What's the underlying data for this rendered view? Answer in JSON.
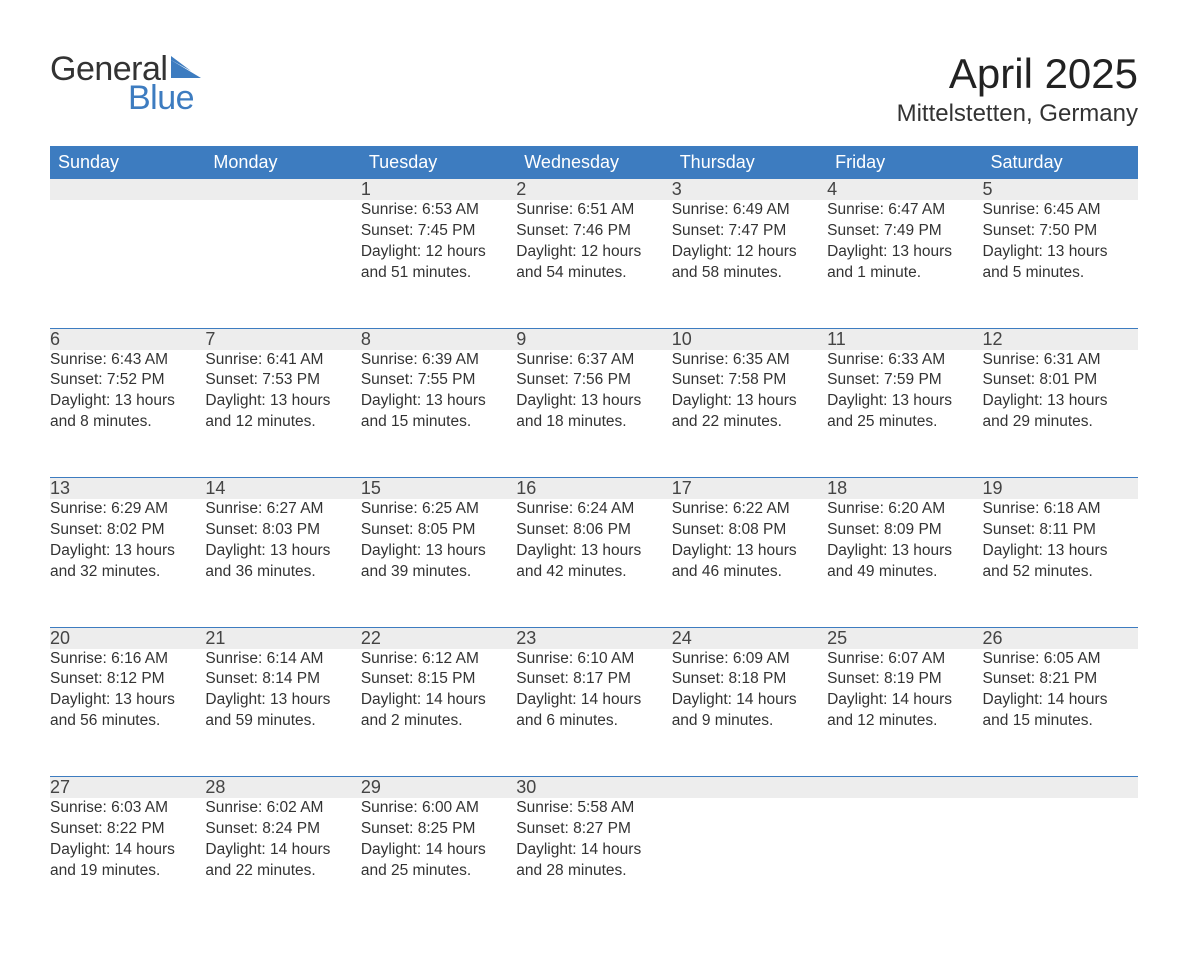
{
  "brand": {
    "word1": "General",
    "word2": "Blue",
    "text_color": "#333333",
    "accent_color": "#3d7cc0"
  },
  "title": "April 2025",
  "location": "Mittelstetten, Germany",
  "colors": {
    "header_bg": "#3d7cc0",
    "header_fg": "#ffffff",
    "daynum_bg": "#ededed",
    "row_border": "#3d7cc0",
    "body_fg": "#333333",
    "page_bg": "#ffffff"
  },
  "day_labels": [
    "Sunday",
    "Monday",
    "Tuesday",
    "Wednesday",
    "Thursday",
    "Friday",
    "Saturday"
  ],
  "weeks": [
    [
      null,
      null,
      {
        "n": "1",
        "sunrise": "Sunrise: 6:53 AM",
        "sunset": "Sunset: 7:45 PM",
        "daylight1": "Daylight: 12 hours",
        "daylight2": "and 51 minutes."
      },
      {
        "n": "2",
        "sunrise": "Sunrise: 6:51 AM",
        "sunset": "Sunset: 7:46 PM",
        "daylight1": "Daylight: 12 hours",
        "daylight2": "and 54 minutes."
      },
      {
        "n": "3",
        "sunrise": "Sunrise: 6:49 AM",
        "sunset": "Sunset: 7:47 PM",
        "daylight1": "Daylight: 12 hours",
        "daylight2": "and 58 minutes."
      },
      {
        "n": "4",
        "sunrise": "Sunrise: 6:47 AM",
        "sunset": "Sunset: 7:49 PM",
        "daylight1": "Daylight: 13 hours",
        "daylight2": "and 1 minute."
      },
      {
        "n": "5",
        "sunrise": "Sunrise: 6:45 AM",
        "sunset": "Sunset: 7:50 PM",
        "daylight1": "Daylight: 13 hours",
        "daylight2": "and 5 minutes."
      }
    ],
    [
      {
        "n": "6",
        "sunrise": "Sunrise: 6:43 AM",
        "sunset": "Sunset: 7:52 PM",
        "daylight1": "Daylight: 13 hours",
        "daylight2": "and 8 minutes."
      },
      {
        "n": "7",
        "sunrise": "Sunrise: 6:41 AM",
        "sunset": "Sunset: 7:53 PM",
        "daylight1": "Daylight: 13 hours",
        "daylight2": "and 12 minutes."
      },
      {
        "n": "8",
        "sunrise": "Sunrise: 6:39 AM",
        "sunset": "Sunset: 7:55 PM",
        "daylight1": "Daylight: 13 hours",
        "daylight2": "and 15 minutes."
      },
      {
        "n": "9",
        "sunrise": "Sunrise: 6:37 AM",
        "sunset": "Sunset: 7:56 PM",
        "daylight1": "Daylight: 13 hours",
        "daylight2": "and 18 minutes."
      },
      {
        "n": "10",
        "sunrise": "Sunrise: 6:35 AM",
        "sunset": "Sunset: 7:58 PM",
        "daylight1": "Daylight: 13 hours",
        "daylight2": "and 22 minutes."
      },
      {
        "n": "11",
        "sunrise": "Sunrise: 6:33 AM",
        "sunset": "Sunset: 7:59 PM",
        "daylight1": "Daylight: 13 hours",
        "daylight2": "and 25 minutes."
      },
      {
        "n": "12",
        "sunrise": "Sunrise: 6:31 AM",
        "sunset": "Sunset: 8:01 PM",
        "daylight1": "Daylight: 13 hours",
        "daylight2": "and 29 minutes."
      }
    ],
    [
      {
        "n": "13",
        "sunrise": "Sunrise: 6:29 AM",
        "sunset": "Sunset: 8:02 PM",
        "daylight1": "Daylight: 13 hours",
        "daylight2": "and 32 minutes."
      },
      {
        "n": "14",
        "sunrise": "Sunrise: 6:27 AM",
        "sunset": "Sunset: 8:03 PM",
        "daylight1": "Daylight: 13 hours",
        "daylight2": "and 36 minutes."
      },
      {
        "n": "15",
        "sunrise": "Sunrise: 6:25 AM",
        "sunset": "Sunset: 8:05 PM",
        "daylight1": "Daylight: 13 hours",
        "daylight2": "and 39 minutes."
      },
      {
        "n": "16",
        "sunrise": "Sunrise: 6:24 AM",
        "sunset": "Sunset: 8:06 PM",
        "daylight1": "Daylight: 13 hours",
        "daylight2": "and 42 minutes."
      },
      {
        "n": "17",
        "sunrise": "Sunrise: 6:22 AM",
        "sunset": "Sunset: 8:08 PM",
        "daylight1": "Daylight: 13 hours",
        "daylight2": "and 46 minutes."
      },
      {
        "n": "18",
        "sunrise": "Sunrise: 6:20 AM",
        "sunset": "Sunset: 8:09 PM",
        "daylight1": "Daylight: 13 hours",
        "daylight2": "and 49 minutes."
      },
      {
        "n": "19",
        "sunrise": "Sunrise: 6:18 AM",
        "sunset": "Sunset: 8:11 PM",
        "daylight1": "Daylight: 13 hours",
        "daylight2": "and 52 minutes."
      }
    ],
    [
      {
        "n": "20",
        "sunrise": "Sunrise: 6:16 AM",
        "sunset": "Sunset: 8:12 PM",
        "daylight1": "Daylight: 13 hours",
        "daylight2": "and 56 minutes."
      },
      {
        "n": "21",
        "sunrise": "Sunrise: 6:14 AM",
        "sunset": "Sunset: 8:14 PM",
        "daylight1": "Daylight: 13 hours",
        "daylight2": "and 59 minutes."
      },
      {
        "n": "22",
        "sunrise": "Sunrise: 6:12 AM",
        "sunset": "Sunset: 8:15 PM",
        "daylight1": "Daylight: 14 hours",
        "daylight2": "and 2 minutes."
      },
      {
        "n": "23",
        "sunrise": "Sunrise: 6:10 AM",
        "sunset": "Sunset: 8:17 PM",
        "daylight1": "Daylight: 14 hours",
        "daylight2": "and 6 minutes."
      },
      {
        "n": "24",
        "sunrise": "Sunrise: 6:09 AM",
        "sunset": "Sunset: 8:18 PM",
        "daylight1": "Daylight: 14 hours",
        "daylight2": "and 9 minutes."
      },
      {
        "n": "25",
        "sunrise": "Sunrise: 6:07 AM",
        "sunset": "Sunset: 8:19 PM",
        "daylight1": "Daylight: 14 hours",
        "daylight2": "and 12 minutes."
      },
      {
        "n": "26",
        "sunrise": "Sunrise: 6:05 AM",
        "sunset": "Sunset: 8:21 PM",
        "daylight1": "Daylight: 14 hours",
        "daylight2": "and 15 minutes."
      }
    ],
    [
      {
        "n": "27",
        "sunrise": "Sunrise: 6:03 AM",
        "sunset": "Sunset: 8:22 PM",
        "daylight1": "Daylight: 14 hours",
        "daylight2": "and 19 minutes."
      },
      {
        "n": "28",
        "sunrise": "Sunrise: 6:02 AM",
        "sunset": "Sunset: 8:24 PM",
        "daylight1": "Daylight: 14 hours",
        "daylight2": "and 22 minutes."
      },
      {
        "n": "29",
        "sunrise": "Sunrise: 6:00 AM",
        "sunset": "Sunset: 8:25 PM",
        "daylight1": "Daylight: 14 hours",
        "daylight2": "and 25 minutes."
      },
      {
        "n": "30",
        "sunrise": "Sunrise: 5:58 AM",
        "sunset": "Sunset: 8:27 PM",
        "daylight1": "Daylight: 14 hours",
        "daylight2": "and 28 minutes."
      },
      null,
      null,
      null
    ]
  ]
}
